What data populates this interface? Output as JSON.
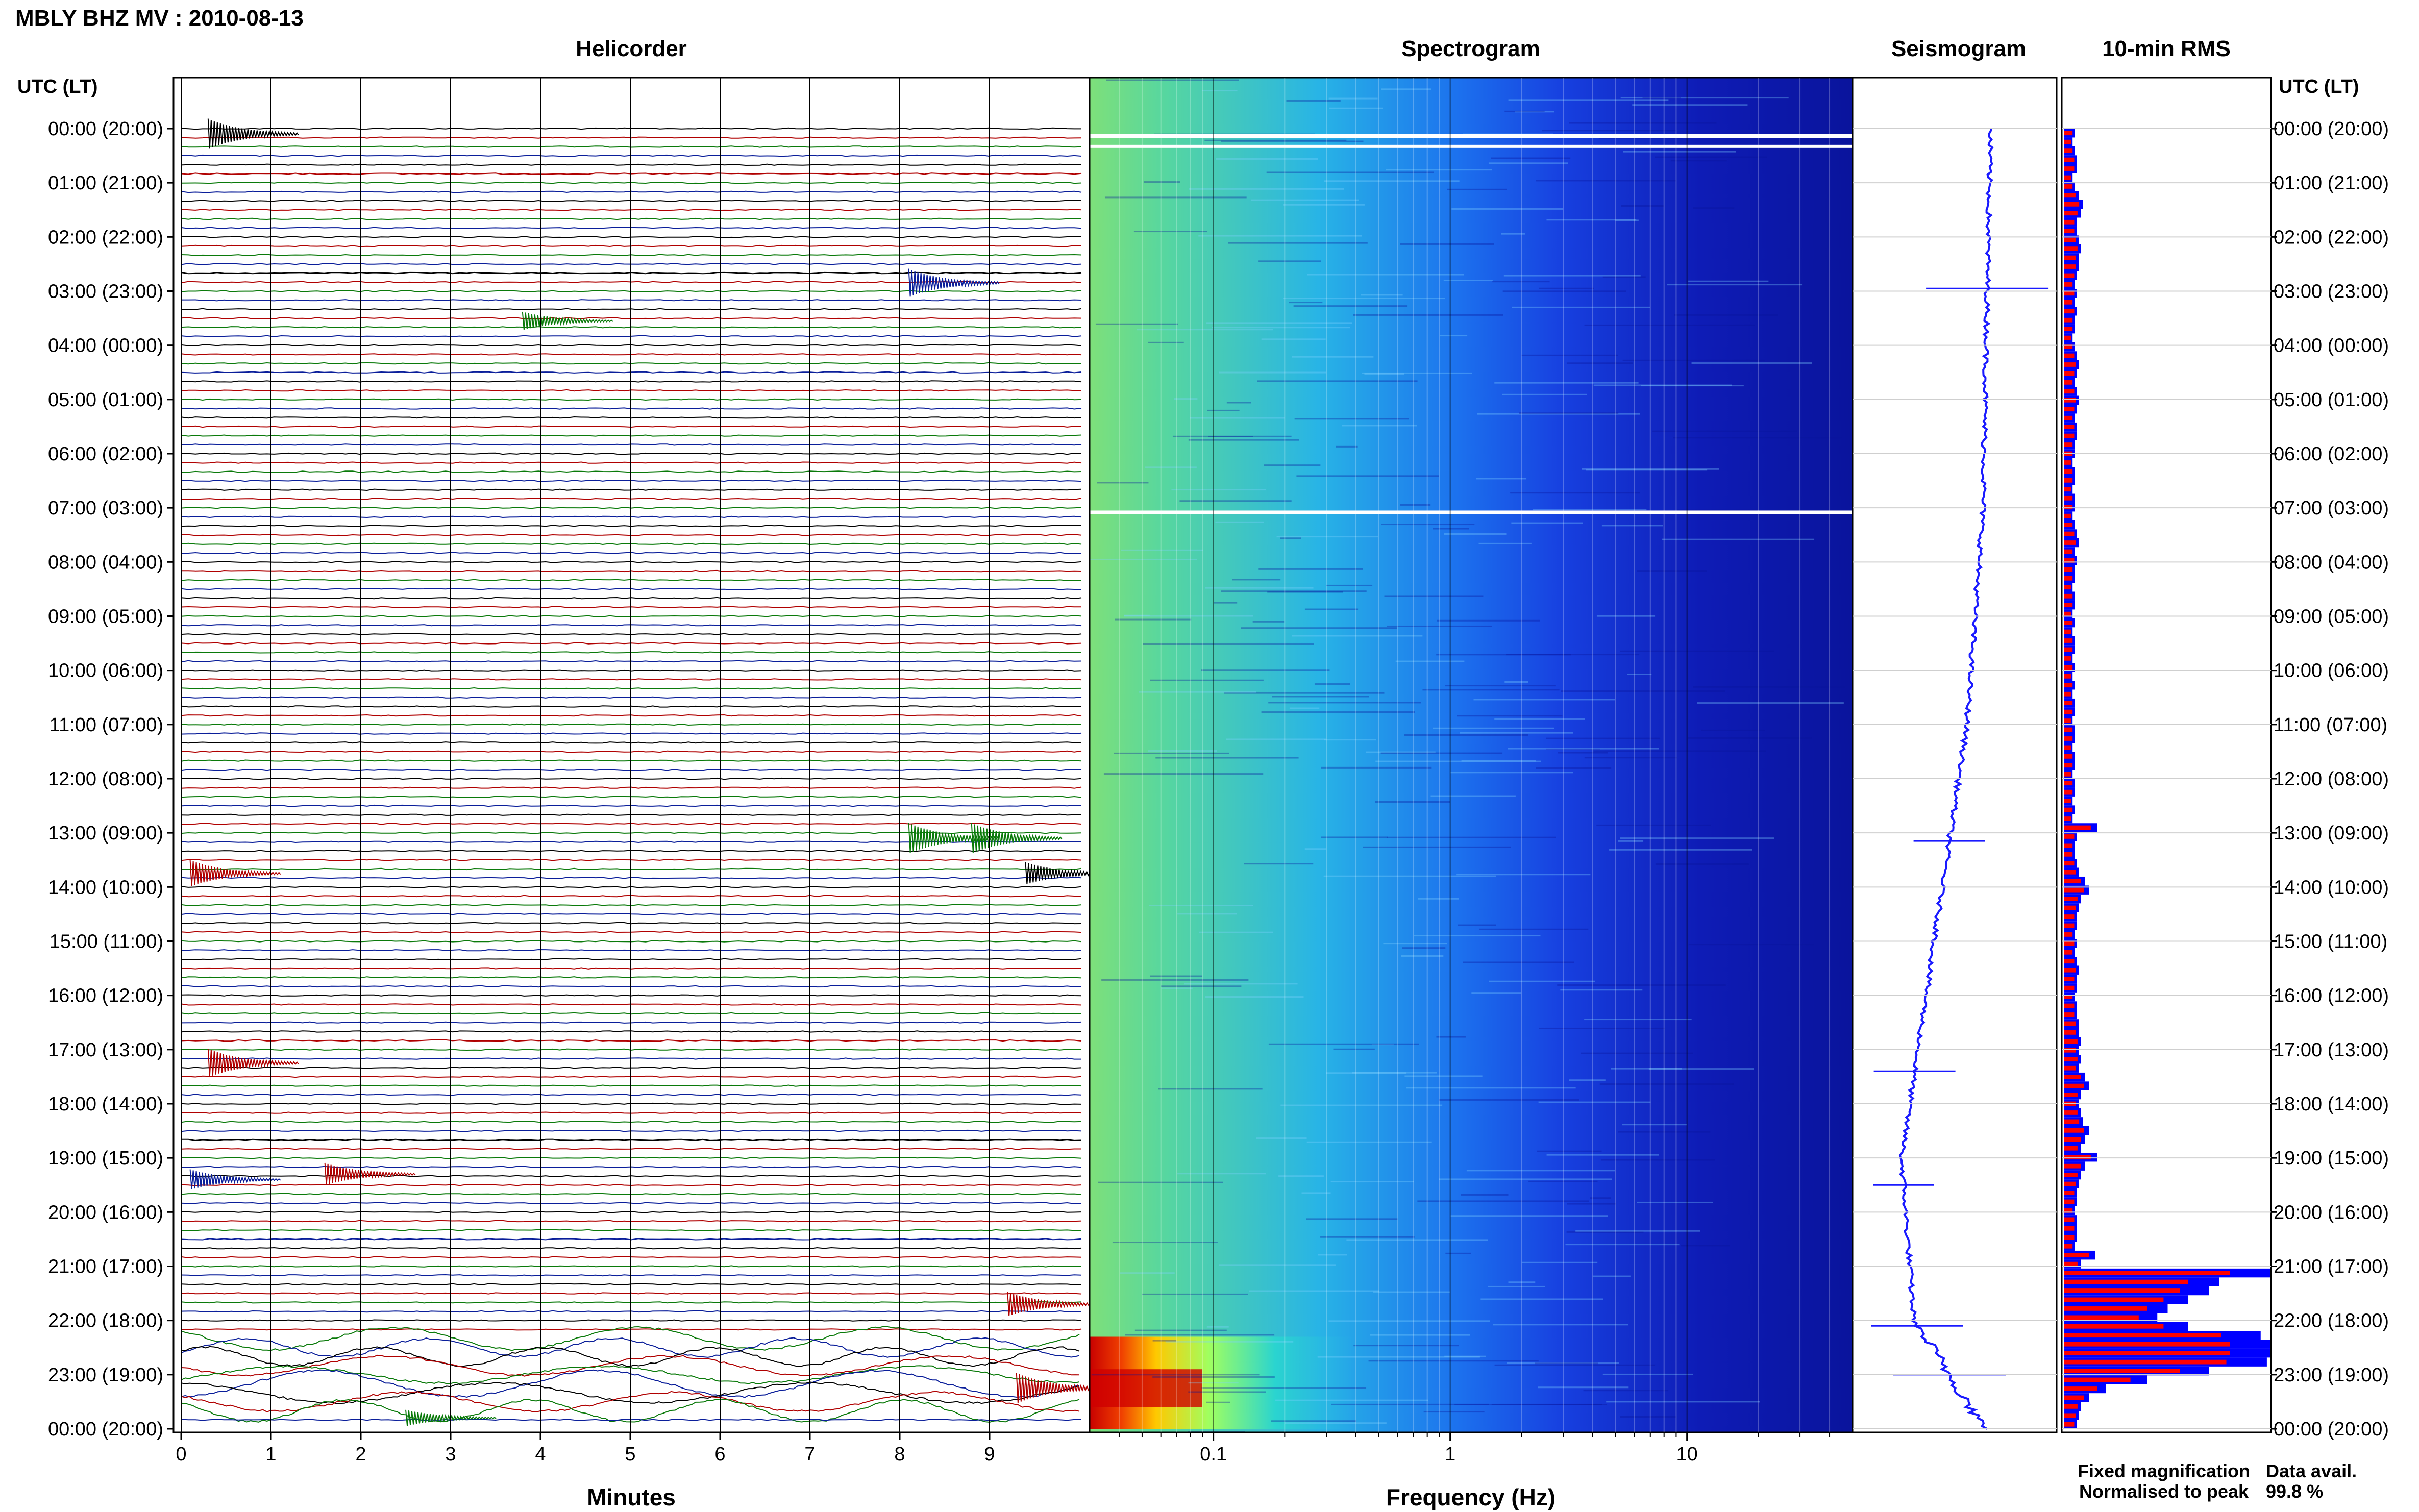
{
  "figure_title": "MBLY BHZ MV : 2010-08-13",
  "panels": {
    "helicorder": "Helicorder",
    "spectrogram": "Spectrogram",
    "seismogram": "Seismogram",
    "rms": "10-min RMS"
  },
  "time_axis": {
    "header": "UTC (LT)",
    "ticks": [
      "00:00 (20:00)",
      "01:00 (21:00)",
      "02:00 (22:00)",
      "03:00 (23:00)",
      "04:00 (00:00)",
      "05:00 (01:00)",
      "06:00 (02:00)",
      "07:00 (03:00)",
      "08:00 (04:00)",
      "09:00 (05:00)",
      "10:00 (06:00)",
      "11:00 (07:00)",
      "12:00 (08:00)",
      "13:00 (09:00)",
      "14:00 (10:00)",
      "15:00 (11:00)",
      "16:00 (12:00)",
      "17:00 (13:00)",
      "18:00 (14:00)",
      "19:00 (15:00)",
      "20:00 (16:00)",
      "21:00 (17:00)",
      "22:00 (18:00)",
      "23:00 (19:00)",
      "00:00 (20:00)"
    ]
  },
  "helicorder_axis": {
    "xlabel": "Minutes",
    "ticks": [
      "0",
      "1",
      "2",
      "3",
      "4",
      "5",
      "6",
      "7",
      "8",
      "9"
    ]
  },
  "spectrogram_axis": {
    "xlabel": "Frequency (Hz)",
    "ticks": [
      "0.1",
      "1",
      "10"
    ],
    "scale": "log"
  },
  "legend": {
    "fixed": "Fixed magnification",
    "normalised": "Normalised to peak",
    "avail_label": "Data avail.",
    "avail_value": "99.8 %"
  },
  "colors": {
    "trace_cycle": [
      "#000000",
      "#b00000",
      "#0a7a0a",
      "#0a1e9a"
    ],
    "rms_fixed": "#0000ff",
    "rms_normalised": "#ff0000",
    "seismogram": "#1a1aff",
    "legend_fixed": "#0000ff",
    "legend_normalised": "#ff0000"
  },
  "chart_data": {
    "type": "area",
    "y_unit": "hour of day (UTC)",
    "ylim": [
      0,
      24
    ],
    "helicorder_xlim_minutes": [
      0,
      10
    ],
    "spectrogram_xlim_hz": [
      0.03,
      50
    ],
    "series": [
      {
        "name": "Fixed magnification",
        "values": [
          0.05,
          0.04,
          0.05,
          0.06,
          0.06,
          0.04,
          0.05,
          0.07,
          0.09,
          0.08,
          0.06,
          0.06,
          0.07,
          0.08,
          0.07,
          0.07,
          0.06,
          0.05,
          0.06,
          0.05,
          0.06,
          0.05,
          0.05,
          0.04,
          0.05,
          0.06,
          0.07,
          0.06,
          0.05,
          0.06,
          0.07,
          0.06,
          0.05,
          0.06,
          0.06,
          0.05,
          0.05,
          0.04,
          0.05,
          0.05,
          0.04,
          0.05,
          0.05,
          0.04,
          0.05,
          0.06,
          0.07,
          0.05,
          0.06,
          0.05,
          0.05,
          0.04,
          0.05,
          0.05,
          0.04,
          0.05,
          0.04,
          0.05,
          0.05,
          0.04,
          0.05,
          0.04,
          0.05,
          0.04,
          0.05,
          0.05,
          0.04,
          0.05,
          0.05,
          0.04,
          0.05,
          0.05,
          0.04,
          0.05,
          0.05,
          0.04,
          0.05,
          0.04,
          0.16,
          0.06,
          0.05,
          0.05,
          0.06,
          0.07,
          0.1,
          0.12,
          0.08,
          0.07,
          0.06,
          0.06,
          0.05,
          0.06,
          0.05,
          0.06,
          0.07,
          0.06,
          0.06,
          0.05,
          0.06,
          0.06,
          0.07,
          0.07,
          0.08,
          0.07,
          0.08,
          0.07,
          0.1,
          0.12,
          0.08,
          0.07,
          0.08,
          0.09,
          0.12,
          0.1,
          0.08,
          0.16,
          0.1,
          0.08,
          0.07,
          0.06,
          0.06,
          0.05,
          0.06,
          0.06,
          0.06,
          0.05,
          0.15,
          0.08,
          1.0,
          0.75,
          0.7,
          0.6,
          0.5,
          0.45,
          0.6,
          0.95,
          1.0,
          1.0,
          0.98,
          0.7,
          0.4,
          0.2,
          0.12,
          0.08,
          0.07,
          0.06
        ]
      },
      {
        "name": "Normalised to peak",
        "values": [
          0.05,
          0.04,
          0.05,
          0.06,
          0.06,
          0.04,
          0.05,
          0.07,
          0.09,
          0.08,
          0.06,
          0.06,
          0.07,
          0.08,
          0.07,
          0.07,
          0.06,
          0.05,
          0.06,
          0.05,
          0.06,
          0.05,
          0.05,
          0.04,
          0.05,
          0.06,
          0.07,
          0.06,
          0.05,
          0.06,
          0.07,
          0.06,
          0.05,
          0.06,
          0.06,
          0.05,
          0.05,
          0.04,
          0.05,
          0.05,
          0.04,
          0.05,
          0.05,
          0.04,
          0.05,
          0.06,
          0.07,
          0.05,
          0.06,
          0.05,
          0.05,
          0.04,
          0.05,
          0.05,
          0.04,
          0.05,
          0.04,
          0.05,
          0.05,
          0.04,
          0.05,
          0.04,
          0.05,
          0.04,
          0.05,
          0.05,
          0.04,
          0.05,
          0.05,
          0.04,
          0.05,
          0.05,
          0.04,
          0.05,
          0.05,
          0.04,
          0.05,
          0.04,
          0.16,
          0.06,
          0.05,
          0.05,
          0.06,
          0.07,
          0.1,
          0.12,
          0.08,
          0.07,
          0.06,
          0.06,
          0.05,
          0.06,
          0.05,
          0.06,
          0.07,
          0.06,
          0.06,
          0.05,
          0.06,
          0.06,
          0.07,
          0.07,
          0.08,
          0.07,
          0.08,
          0.07,
          0.1,
          0.12,
          0.08,
          0.07,
          0.08,
          0.09,
          0.12,
          0.1,
          0.08,
          0.16,
          0.1,
          0.08,
          0.07,
          0.06,
          0.06,
          0.05,
          0.06,
          0.06,
          0.06,
          0.05,
          0.15,
          0.08,
          1.0,
          0.75,
          0.7,
          0.6,
          0.5,
          0.45,
          0.6,
          0.95,
          1.0,
          1.0,
          0.98,
          0.7,
          0.4,
          0.2,
          0.12,
          0.08,
          0.07,
          0.06
        ]
      }
    ]
  }
}
